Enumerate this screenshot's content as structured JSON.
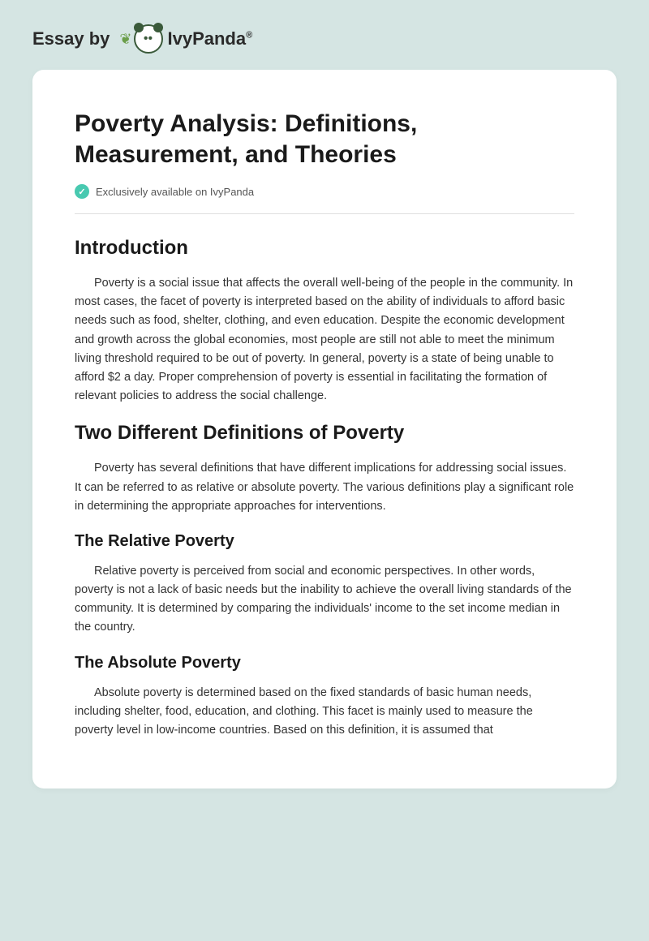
{
  "header": {
    "essay_by": "Essay by",
    "brand": "IvyPanda",
    "reg": "®"
  },
  "document": {
    "title": "Poverty Analysis: Definitions, Measurement, and Theories",
    "badge": "Exclusively available on IvyPanda",
    "sections": {
      "intro_heading": "Introduction",
      "intro_para": "Poverty is a social issue that affects the overall well-being of the people in the community. In most cases, the facet of poverty is interpreted based on the ability of individuals to afford basic needs such as food, shelter, clothing, and even education. Despite the economic development and growth across the global economies, most people are still not able to meet the minimum living threshold required to be out of poverty. In general, poverty is a state of being unable to afford $2 a day. Proper comprehension of poverty is essential in facilitating the formation of relevant policies to address the social challenge.",
      "defs_heading": "Two Different Definitions of Poverty",
      "defs_para": "Poverty has several definitions that have different implications for addressing social issues. It can be referred to as relative or absolute poverty. The various definitions play a significant role in determining the appropriate approaches for interventions.",
      "relative_heading": "The Relative Poverty",
      "relative_para": "Relative poverty is perceived from social and economic perspectives. In other words, poverty is not a lack of basic needs but the inability to achieve the overall living standards of the community. It is determined by comparing the individuals' income to the set income median in the country.",
      "absolute_heading": "The Absolute Poverty",
      "absolute_para": "Absolute poverty is determined based on the fixed standards of basic human needs, including shelter, food, education, and clothing. This facet is mainly used to measure the poverty level in low-income countries. Based on this definition, it is assumed that"
    }
  },
  "colors": {
    "page_bg": "#d5e5e3",
    "card_bg": "#ffffff",
    "check_bg": "#48c9b0",
    "text_primary": "#1a1a1a",
    "text_body": "#333333",
    "divider": "#e0e0e0"
  }
}
